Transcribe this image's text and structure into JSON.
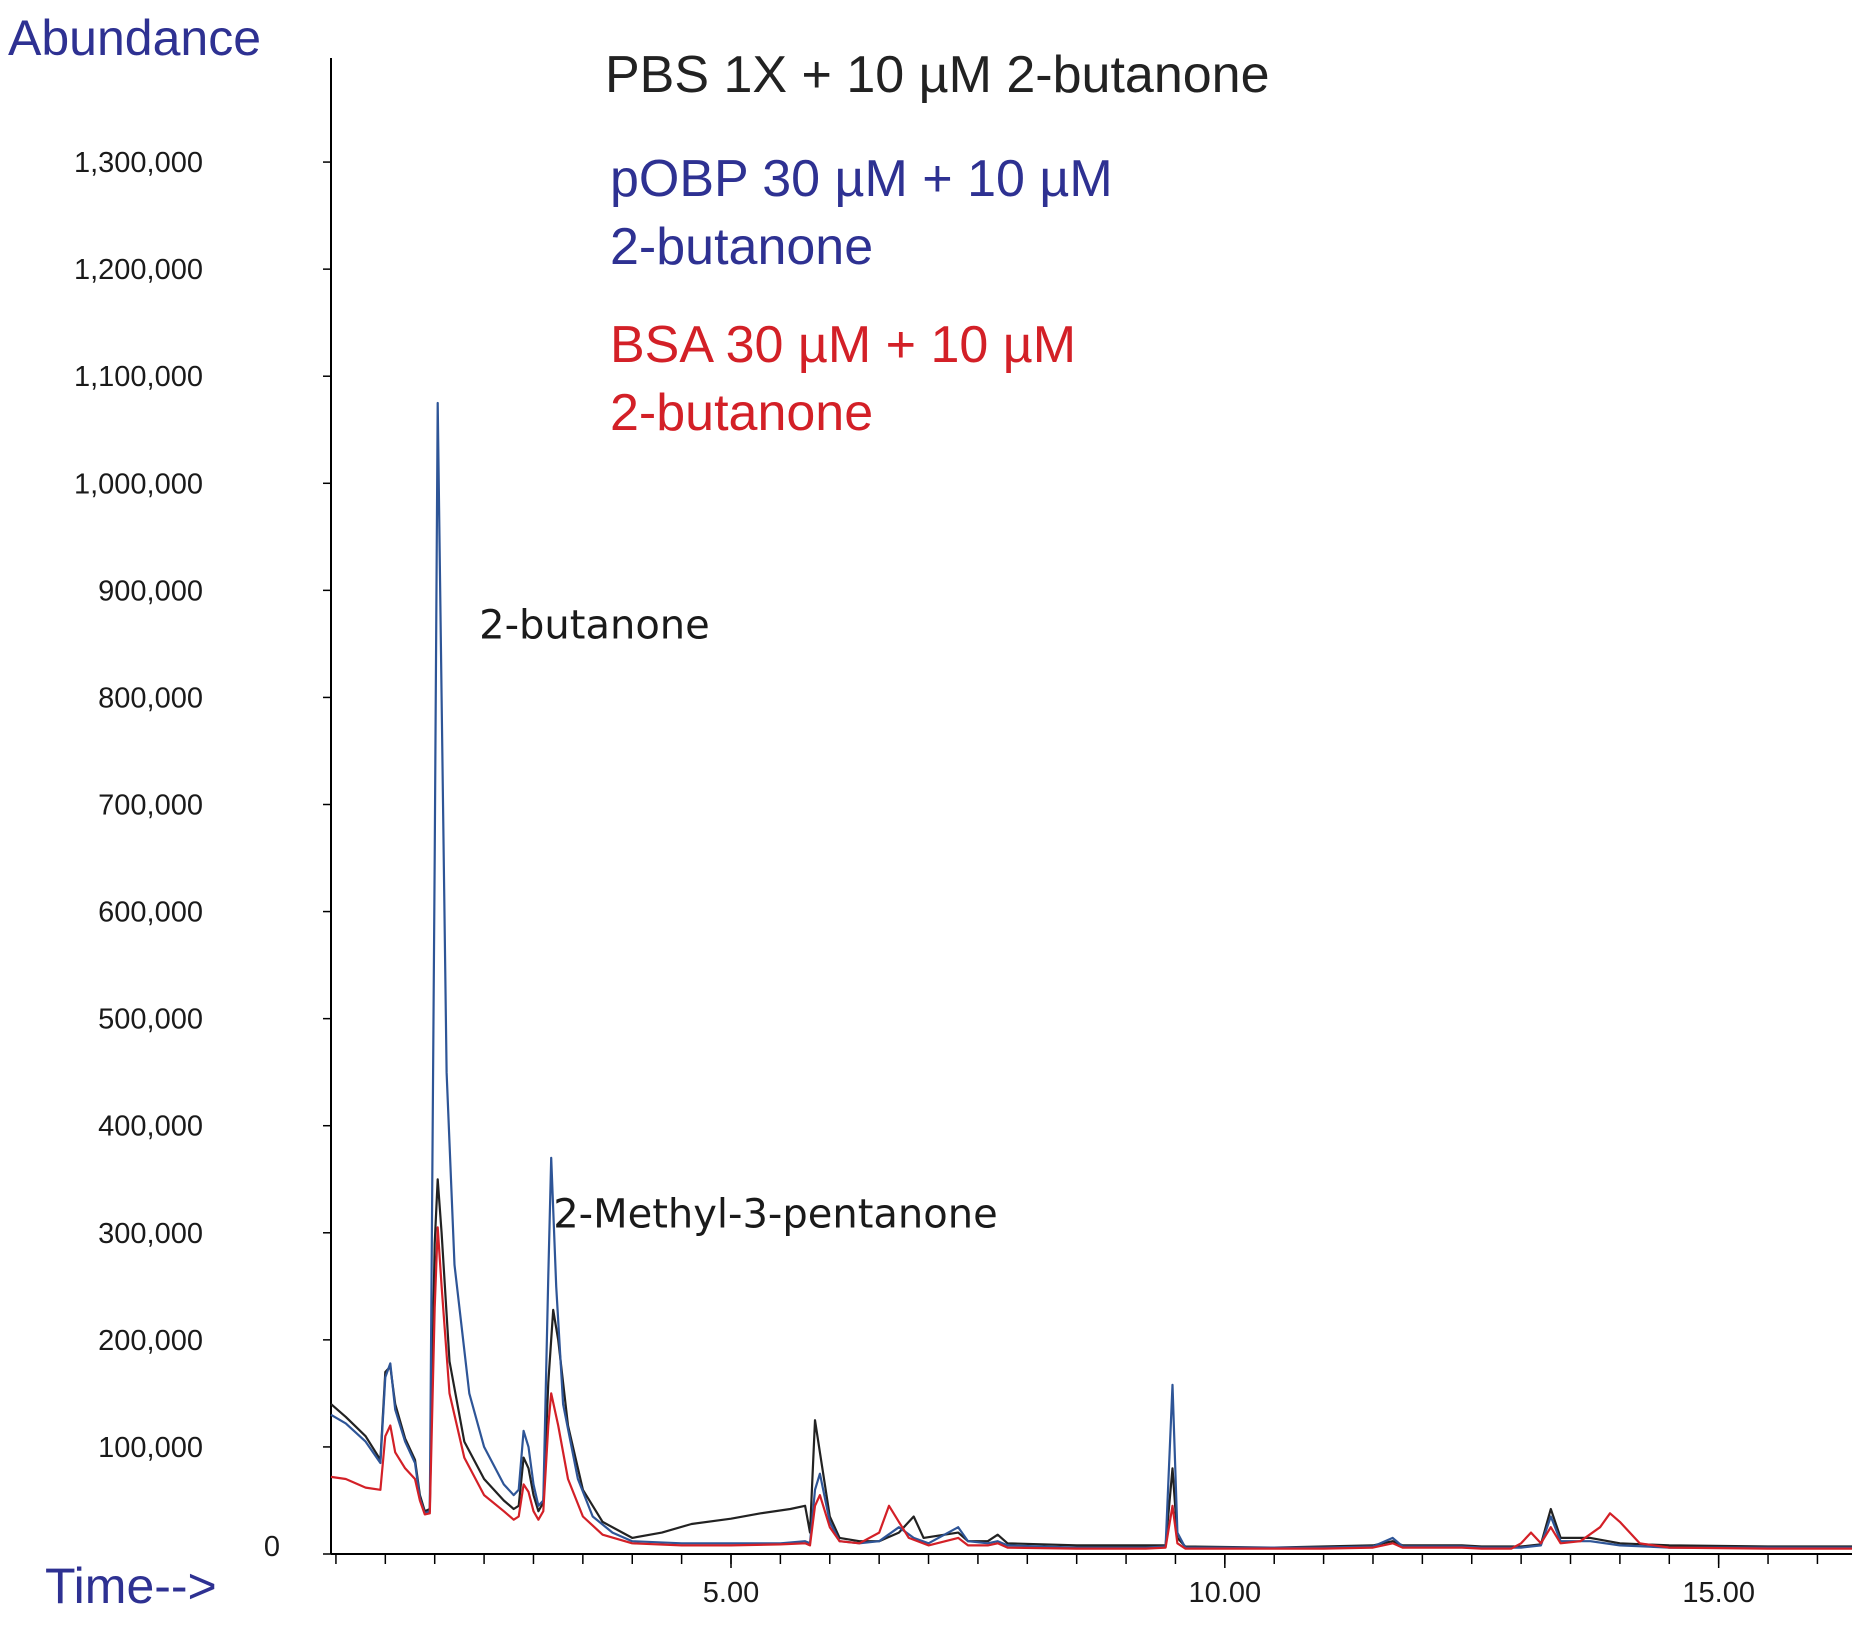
{
  "chart_data": {
    "type": "line",
    "title": "",
    "ylabel": "Abundance",
    "xlabel": "Time-->",
    "xlim": [
      0.95,
      16.35
    ],
    "ylim": [
      0,
      1400000
    ],
    "grid": false,
    "legend_position": "top",
    "y_ticks": [
      0,
      100000,
      200000,
      300000,
      400000,
      500000,
      600000,
      700000,
      800000,
      900000,
      1000000,
      1100000,
      1200000,
      1300000
    ],
    "y_tick_labels": [
      "0",
      "100,000",
      "200,000",
      "300,000",
      "400,000",
      "500,000",
      "600,000",
      "700,000",
      "800,000",
      "900,000",
      "1,000,000",
      "1,100,000",
      "1,200,000",
      "1,300,000"
    ],
    "x_ticks": [
      5.0,
      10.0,
      15.0
    ],
    "x_tick_labels": [
      "5.00",
      "10.00",
      "15.00"
    ],
    "x_minor_step": 0.5,
    "legend": [
      {
        "label": "PBS 1X + 10 µM 2-butanone",
        "color": "#222222"
      },
      {
        "label_lines": [
          "pOBP 30 µM + 10 µM",
          "2-butanone"
        ],
        "color": "#2e3192"
      },
      {
        "label_lines": [
          "BSA 30 µM + 10 µM",
          "2-butanone"
        ],
        "color": "#d32027"
      }
    ],
    "annotations": [
      {
        "text": "2-butanone",
        "x": 2.45,
        "y": 855000
      },
      {
        "text": "2-Methyl-3-pentanone",
        "x": 3.2,
        "y": 305000
      }
    ],
    "series": [
      {
        "name": "PBS 1X + 10 µM 2-butanone",
        "color": "#222222",
        "points": [
          [
            0.95,
            140000
          ],
          [
            1.1,
            128000
          ],
          [
            1.3,
            110000
          ],
          [
            1.45,
            88000
          ],
          [
            1.5,
            170000
          ],
          [
            1.55,
            175000
          ],
          [
            1.6,
            140000
          ],
          [
            1.7,
            108000
          ],
          [
            1.8,
            88000
          ],
          [
            1.85,
            55000
          ],
          [
            1.9,
            40000
          ],
          [
            1.95,
            42000
          ],
          [
            2.0,
            290000
          ],
          [
            2.03,
            350000
          ],
          [
            2.07,
            300000
          ],
          [
            2.15,
            180000
          ],
          [
            2.3,
            105000
          ],
          [
            2.5,
            70000
          ],
          [
            2.7,
            50000
          ],
          [
            2.8,
            42000
          ],
          [
            2.85,
            45000
          ],
          [
            2.9,
            90000
          ],
          [
            2.95,
            80000
          ],
          [
            3.0,
            55000
          ],
          [
            3.05,
            40000
          ],
          [
            3.1,
            48000
          ],
          [
            3.15,
            160000
          ],
          [
            3.2,
            228000
          ],
          [
            3.25,
            200000
          ],
          [
            3.35,
            120000
          ],
          [
            3.5,
            60000
          ],
          [
            3.7,
            30000
          ],
          [
            4.0,
            15000
          ],
          [
            4.3,
            20000
          ],
          [
            4.6,
            28000
          ],
          [
            5.0,
            33000
          ],
          [
            5.3,
            38000
          ],
          [
            5.6,
            42000
          ],
          [
            5.75,
            45000
          ],
          [
            5.8,
            20000
          ],
          [
            5.85,
            125000
          ],
          [
            5.9,
            95000
          ],
          [
            6.0,
            35000
          ],
          [
            6.1,
            15000
          ],
          [
            6.3,
            12000
          ],
          [
            6.5,
            12000
          ],
          [
            6.7,
            20000
          ],
          [
            6.85,
            35000
          ],
          [
            6.95,
            15000
          ],
          [
            7.3,
            20000
          ],
          [
            7.4,
            12000
          ],
          [
            7.6,
            12000
          ],
          [
            7.7,
            18000
          ],
          [
            7.8,
            10000
          ],
          [
            8.5,
            8000
          ],
          [
            9.2,
            8000
          ],
          [
            9.4,
            8000
          ],
          [
            9.47,
            80000
          ],
          [
            9.52,
            15000
          ],
          [
            9.6,
            7000
          ],
          [
            10.5,
            6000
          ],
          [
            11.0,
            7000
          ],
          [
            11.5,
            8000
          ],
          [
            11.7,
            12000
          ],
          [
            11.8,
            8000
          ],
          [
            12.4,
            8000
          ],
          [
            12.6,
            7000
          ],
          [
            13.0,
            7000
          ],
          [
            13.2,
            9000
          ],
          [
            13.3,
            42000
          ],
          [
            13.4,
            15000
          ],
          [
            13.7,
            15000
          ],
          [
            14.0,
            10000
          ],
          [
            14.5,
            8000
          ],
          [
            15.5,
            7000
          ],
          [
            16.35,
            7000
          ]
        ]
      },
      {
        "name": "pOBP 30 µM + 10 µM 2-butanone",
        "color": "#2e5597",
        "points": [
          [
            0.95,
            130000
          ],
          [
            1.1,
            122000
          ],
          [
            1.3,
            105000
          ],
          [
            1.45,
            85000
          ],
          [
            1.5,
            165000
          ],
          [
            1.55,
            178000
          ],
          [
            1.6,
            135000
          ],
          [
            1.7,
            105000
          ],
          [
            1.8,
            85000
          ],
          [
            1.85,
            52000
          ],
          [
            1.9,
            38000
          ],
          [
            1.95,
            40000
          ],
          [
            2.0,
            650000
          ],
          [
            2.03,
            1075000
          ],
          [
            2.07,
            800000
          ],
          [
            2.12,
            450000
          ],
          [
            2.2,
            270000
          ],
          [
            2.35,
            150000
          ],
          [
            2.5,
            100000
          ],
          [
            2.7,
            65000
          ],
          [
            2.8,
            55000
          ],
          [
            2.85,
            60000
          ],
          [
            2.9,
            115000
          ],
          [
            2.95,
            100000
          ],
          [
            3.0,
            65000
          ],
          [
            3.05,
            45000
          ],
          [
            3.1,
            50000
          ],
          [
            3.15,
            260000
          ],
          [
            3.18,
            370000
          ],
          [
            3.23,
            250000
          ],
          [
            3.3,
            140000
          ],
          [
            3.45,
            70000
          ],
          [
            3.6,
            35000
          ],
          [
            3.8,
            20000
          ],
          [
            4.0,
            12000
          ],
          [
            4.5,
            10000
          ],
          [
            5.0,
            10000
          ],
          [
            5.5,
            10000
          ],
          [
            5.75,
            12000
          ],
          [
            5.8,
            10000
          ],
          [
            5.85,
            60000
          ],
          [
            5.9,
            75000
          ],
          [
            6.0,
            30000
          ],
          [
            6.1,
            12000
          ],
          [
            6.3,
            10000
          ],
          [
            6.5,
            12000
          ],
          [
            6.7,
            25000
          ],
          [
            6.85,
            15000
          ],
          [
            7.0,
            10000
          ],
          [
            7.3,
            25000
          ],
          [
            7.4,
            12000
          ],
          [
            7.6,
            10000
          ],
          [
            7.7,
            12000
          ],
          [
            7.8,
            8000
          ],
          [
            8.5,
            6000
          ],
          [
            9.2,
            6000
          ],
          [
            9.4,
            7000
          ],
          [
            9.47,
            158000
          ],
          [
            9.52,
            20000
          ],
          [
            9.6,
            6000
          ],
          [
            10.5,
            6000
          ],
          [
            11.0,
            6000
          ],
          [
            11.5,
            7000
          ],
          [
            11.7,
            15000
          ],
          [
            11.8,
            7000
          ],
          [
            12.4,
            7000
          ],
          [
            12.6,
            6000
          ],
          [
            13.0,
            6000
          ],
          [
            13.2,
            8000
          ],
          [
            13.3,
            35000
          ],
          [
            13.4,
            12000
          ],
          [
            13.7,
            12000
          ],
          [
            14.0,
            8000
          ],
          [
            14.5,
            6000
          ],
          [
            15.5,
            6000
          ],
          [
            16.35,
            6000
          ]
        ]
      },
      {
        "name": "BSA 30 µM + 10 µM 2-butanone",
        "color": "#d32027",
        "points": [
          [
            0.95,
            72000
          ],
          [
            1.1,
            70000
          ],
          [
            1.3,
            62000
          ],
          [
            1.45,
            60000
          ],
          [
            1.5,
            110000
          ],
          [
            1.55,
            120000
          ],
          [
            1.6,
            95000
          ],
          [
            1.7,
            80000
          ],
          [
            1.8,
            70000
          ],
          [
            1.85,
            50000
          ],
          [
            1.9,
            37000
          ],
          [
            1.95,
            38000
          ],
          [
            2.0,
            230000
          ],
          [
            2.03,
            305000
          ],
          [
            2.07,
            250000
          ],
          [
            2.15,
            150000
          ],
          [
            2.3,
            90000
          ],
          [
            2.5,
            55000
          ],
          [
            2.7,
            40000
          ],
          [
            2.8,
            32000
          ],
          [
            2.85,
            35000
          ],
          [
            2.9,
            65000
          ],
          [
            2.95,
            58000
          ],
          [
            3.0,
            40000
          ],
          [
            3.05,
            32000
          ],
          [
            3.1,
            40000
          ],
          [
            3.15,
            120000
          ],
          [
            3.18,
            150000
          ],
          [
            3.25,
            120000
          ],
          [
            3.35,
            70000
          ],
          [
            3.5,
            35000
          ],
          [
            3.7,
            18000
          ],
          [
            4.0,
            10000
          ],
          [
            4.5,
            8000
          ],
          [
            5.0,
            8000
          ],
          [
            5.5,
            9000
          ],
          [
            5.75,
            10000
          ],
          [
            5.8,
            8000
          ],
          [
            5.85,
            45000
          ],
          [
            5.9,
            55000
          ],
          [
            6.0,
            25000
          ],
          [
            6.1,
            12000
          ],
          [
            6.3,
            10000
          ],
          [
            6.5,
            20000
          ],
          [
            6.6,
            45000
          ],
          [
            6.7,
            30000
          ],
          [
            6.8,
            15000
          ],
          [
            7.0,
            8000
          ],
          [
            7.3,
            15000
          ],
          [
            7.4,
            8000
          ],
          [
            7.6,
            8000
          ],
          [
            7.7,
            10000
          ],
          [
            7.8,
            6000
          ],
          [
            8.5,
            5000
          ],
          [
            9.2,
            5000
          ],
          [
            9.4,
            6000
          ],
          [
            9.47,
            45000
          ],
          [
            9.52,
            10000
          ],
          [
            9.6,
            5000
          ],
          [
            10.5,
            5000
          ],
          [
            11.0,
            5000
          ],
          [
            11.5,
            6000
          ],
          [
            11.7,
            10000
          ],
          [
            11.8,
            6000
          ],
          [
            12.4,
            6000
          ],
          [
            12.6,
            5000
          ],
          [
            12.9,
            5000
          ],
          [
            13.0,
            10000
          ],
          [
            13.1,
            20000
          ],
          [
            13.2,
            10000
          ],
          [
            13.3,
            25000
          ],
          [
            13.4,
            10000
          ],
          [
            13.6,
            12000
          ],
          [
            13.8,
            25000
          ],
          [
            13.9,
            38000
          ],
          [
            14.0,
            30000
          ],
          [
            14.2,
            10000
          ],
          [
            14.5,
            6000
          ],
          [
            15.5,
            5000
          ],
          [
            16.35,
            5000
          ]
        ]
      }
    ]
  }
}
